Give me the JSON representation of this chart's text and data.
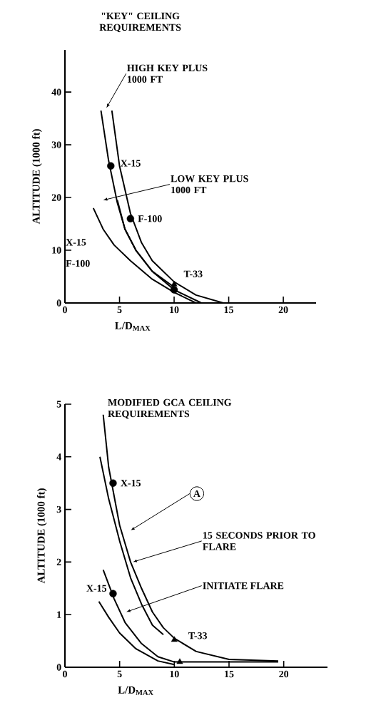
{
  "chart_data": [
    {
      "type": "line",
      "title": "\"KEY\" CEILING REQUIREMENTS",
      "xlabel": "L/D$_{MAX}$",
      "ylabel": "ALTITUDE (1000 ft)",
      "xlim": [
        0,
        23
      ],
      "ylim": [
        0,
        48
      ],
      "xticks": [
        0,
        5,
        10,
        15,
        20
      ],
      "yticks": [
        0,
        10,
        20,
        30,
        40
      ],
      "marker": "none",
      "series": [
        {
          "color": "#000000",
          "x": [
            4.3,
            5,
            6,
            7,
            8,
            10,
            12,
            14.5
          ],
          "values": [
            36.5,
            26,
            17,
            11.5,
            8,
            4,
            1.5,
            0
          ]
        },
        {
          "color": "#000000",
          "x": [
            3.3,
            4,
            4.8,
            5.5,
            6.5,
            8,
            10
          ],
          "values": [
            36.5,
            27,
            19,
            14,
            10,
            6,
            3
          ]
        },
        {
          "color": "#000000",
          "x": [
            4.8,
            5.5,
            6.5,
            8,
            10,
            12.5
          ],
          "values": [
            19.5,
            14,
            10,
            6,
            2.5,
            0
          ]
        },
        {
          "color": "#000000",
          "x": [
            2.6,
            3.5,
            4.5,
            6,
            8,
            10,
            12
          ],
          "values": [
            18,
            14,
            11,
            8,
            4.5,
            2,
            0
          ]
        },
        {
          "type": "scatter",
          "marker": "circle",
          "color": "#000000",
          "x": [
            4.2,
            6,
            10
          ],
          "values": [
            26,
            16,
            2.5
          ]
        },
        {
          "type": "scatter",
          "marker": "triangle",
          "color": "#000000",
          "x": [
            10
          ],
          "values": [
            3.5
          ]
        }
      ],
      "annotations": [
        "HIGH KEY PLUS 1000 FT",
        "LOW KEY PLUS 1000 FT",
        {
          "text": "X-15",
          "x": 4.2,
          "y": 26
        },
        {
          "text": "F-100",
          "x": 6,
          "y": 16
        },
        {
          "text": "T-33",
          "x": 10,
          "y": 3.5
        },
        "X-15",
        "F-100"
      ]
    },
    {
      "type": "line",
      "title": "MODIFIED GCA CEILING REQUIREMENTS",
      "xlabel": "L/D$_{MAX}$",
      "ylabel": "ALTITUDE (1000 ft)",
      "xlim": [
        0,
        24
      ],
      "ylim": [
        0,
        5
      ],
      "xticks": [
        0,
        5,
        10,
        15,
        20
      ],
      "yticks": [
        0,
        1,
        2,
        3,
        4,
        5
      ],
      "marker": "none",
      "series": [
        {
          "color": "#000000",
          "x": [
            3.5,
            4,
            5,
            6,
            7,
            8,
            9,
            10,
            12,
            15,
            19.5
          ],
          "values": [
            4.8,
            3.8,
            2.7,
            2,
            1.5,
            1.05,
            0.75,
            0.55,
            0.3,
            0.15,
            0.12
          ]
        },
        {
          "color": "#000000",
          "x": [
            3.2,
            4,
            5,
            6,
            7,
            8,
            9
          ],
          "values": [
            4,
            3.2,
            2.4,
            1.7,
            1.2,
            0.8,
            0.62
          ]
        },
        {
          "color": "#000000",
          "x": [
            3.5,
            4.5,
            5.5,
            7,
            8.5,
            10,
            19.5
          ],
          "values": [
            1.85,
            1.3,
            0.85,
            0.45,
            0.2,
            0.1,
            0.1
          ]
        },
        {
          "color": "#000000",
          "x": [
            3.1,
            4,
            5,
            6.5,
            8.5,
            10
          ],
          "values": [
            1.25,
            0.95,
            0.65,
            0.35,
            0.12,
            0.05
          ]
        },
        {
          "type": "scatter",
          "marker": "circle",
          "color": "#000000",
          "x": [
            4.4,
            4.4
          ],
          "values": [
            3.5,
            1.4
          ]
        },
        {
          "type": "scatter",
          "marker": "triangle",
          "color": "#000000",
          "x": [
            10,
            10.5
          ],
          "values": [
            0.52,
            0.1
          ]
        }
      ],
      "annotations": [
        {
          "text": "X-15",
          "x": 4.4,
          "y": 3.5
        },
        "A",
        "15 SECONDS PRIOR TO FLARE",
        "INITIATE FLARE",
        {
          "text": "X-15",
          "x": 4.4,
          "y": 1.4
        },
        {
          "text": "T-33",
          "x": 10,
          "y": 0.52
        }
      ]
    }
  ]
}
